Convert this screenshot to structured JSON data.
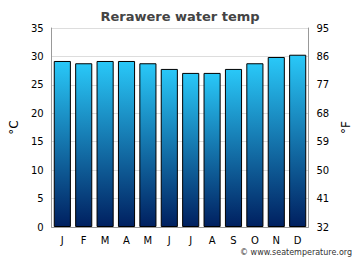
{
  "chart_data": {
    "type": "bar",
    "title": "Rerawere water temp",
    "categories": [
      "J",
      "F",
      "M",
      "A",
      "M",
      "J",
      "J",
      "A",
      "S",
      "O",
      "N",
      "D"
    ],
    "values": [
      29.2,
      28.8,
      29.2,
      29.2,
      28.8,
      27.8,
      27.1,
      27.1,
      27.8,
      28.8,
      29.9,
      30.3
    ],
    "color": "#29c8f8",
    "ylabel": "°C",
    "ylim": [
      0,
      35
    ],
    "yticks": [
      0,
      5,
      10,
      15,
      20,
      25,
      30,
      35
    ],
    "y2label": "°F",
    "y2lim": [
      32,
      95
    ],
    "y2ticks": [
      32,
      41,
      50,
      59,
      68,
      77,
      86,
      95
    ],
    "grid": true,
    "annotations": [
      {
        "text": "© www.seatemperature.org"
      }
    ]
  }
}
